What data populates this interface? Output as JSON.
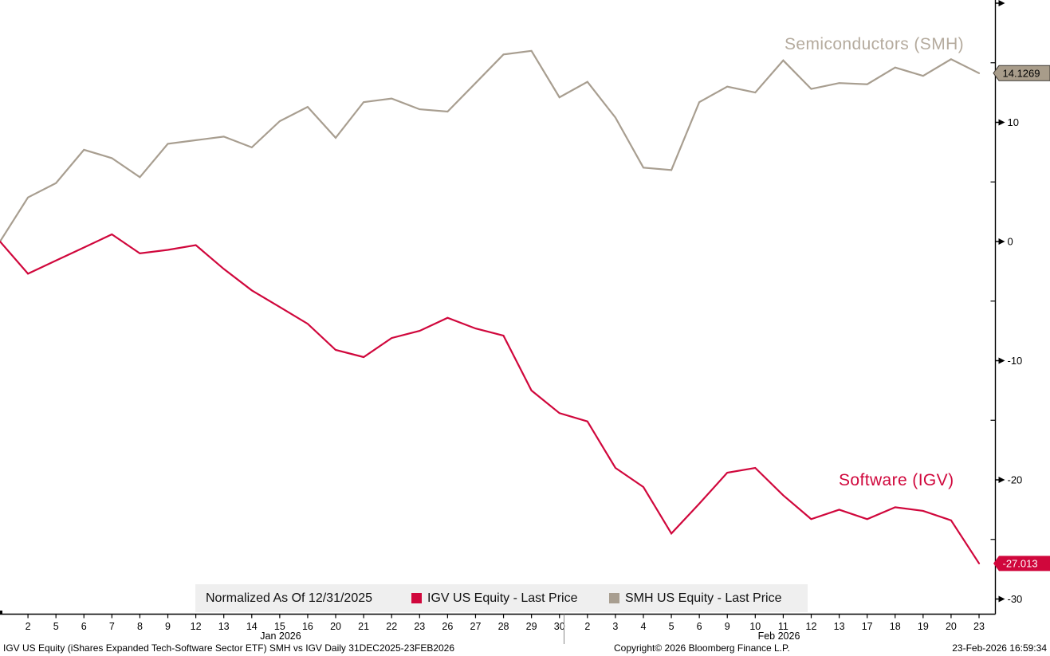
{
  "chart_data": {
    "type": "line",
    "title": "SMH vs IGV Daily 31DEC2025-23FEB2026",
    "normalized_as_of": "Normalized As Of 12/31/2025",
    "start_label": "12/31/2025",
    "x_labels": [
      "2",
      "5",
      "6",
      "7",
      "8",
      "9",
      "12",
      "13",
      "14",
      "15",
      "16",
      "20",
      "21",
      "22",
      "23",
      "26",
      "27",
      "28",
      "29",
      "30",
      "2",
      "3",
      "4",
      "5",
      "6",
      "9",
      "10",
      "11",
      "12",
      "13",
      "17",
      "18",
      "19",
      "20",
      "23"
    ],
    "month_labels": [
      "Jan 2026",
      "Feb 2026"
    ],
    "y_axis": {
      "major_ticks": [
        {
          "v": 20,
          "label": ""
        },
        {
          "v": 10,
          "label": "10"
        },
        {
          "v": 0,
          "label": "0"
        },
        {
          "v": -10,
          "label": "-10"
        },
        {
          "v": -20,
          "label": "-20"
        },
        {
          "v": -30,
          "label": "-30"
        }
      ],
      "minor_ticks": [
        15,
        5,
        -5,
        -15,
        -25
      ],
      "range": [
        -31,
        20
      ]
    },
    "series": [
      {
        "name": "SMH US Equity - Last Price",
        "chart_label": "Semiconductors (SMH)",
        "color": "#a89e90",
        "label_color": "#b5ab9e",
        "tag_color": "#a89c8a",
        "tag_border": "#3d3833",
        "tag_text_color": "#000000",
        "last_price": "14.1269",
        "values": [
          0,
          3.7,
          4.9,
          7.7,
          7.0,
          5.4,
          8.2,
          8.5,
          8.8,
          7.9,
          10.1,
          11.3,
          8.7,
          11.7,
          12.0,
          11.1,
          10.9,
          13.3,
          15.7,
          16.0,
          12.1,
          13.4,
          10.4,
          6.2,
          6.0,
          11.7,
          13.0,
          12.5,
          15.2,
          12.8,
          13.3,
          13.2,
          14.6,
          13.9,
          15.3,
          14.1269
        ]
      },
      {
        "name": "IGV US Equity - Last Price",
        "chart_label": "Software (IGV)",
        "color": "#d0073c",
        "label_color": "#d0073c",
        "tag_color": "#d0073c",
        "tag_border": "",
        "tag_text_color": "#ffffff",
        "last_price": "-27.013",
        "values": [
          0,
          -2.7,
          -1.6,
          -0.5,
          0.6,
          -1.0,
          -0.7,
          -0.3,
          -2.3,
          -4.1,
          -5.5,
          -6.9,
          -9.1,
          -9.7,
          -8.1,
          -7.5,
          -6.4,
          -7.3,
          -7.9,
          -12.5,
          -14.4,
          -15.1,
          -19.0,
          -20.6,
          -24.5,
          -22.0,
          -19.4,
          -19.0,
          -21.3,
          -23.3,
          -22.5,
          -23.3,
          -22.3,
          -22.6,
          -23.4,
          -27.013
        ]
      }
    ]
  },
  "legend": {
    "normalized_label": "Normalized As Of 12/31/2025",
    "items": [
      {
        "label": "IGV US Equity - Last Price",
        "color": "#d0073c"
      },
      {
        "label": "SMH US Equity - Last Price",
        "color": "#a89e90"
      }
    ]
  },
  "footer": {
    "description": "IGV US Equity (iShares Expanded Tech-Software Sector ETF) SMH vs IGV Daily 31DEC2025-23FEB2026",
    "copyright": "Copyright© 2026 Bloomberg Finance L.P.",
    "timestamp": "23-Feb-2026 16:59:34"
  }
}
